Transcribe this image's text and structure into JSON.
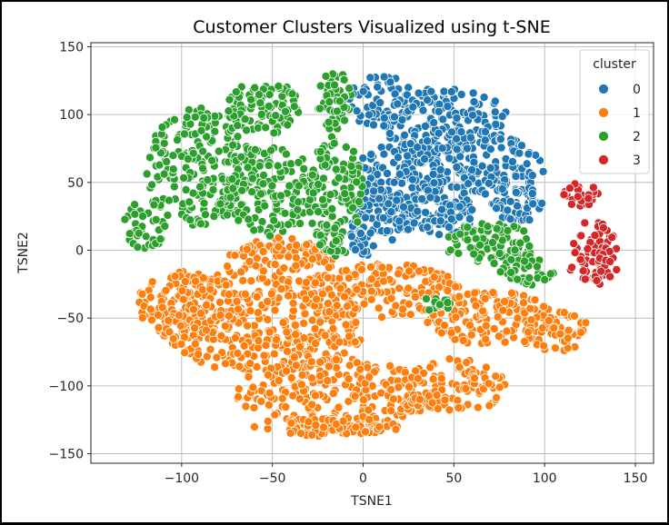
{
  "chart_data": {
    "type": "scatter",
    "title": "Customer Clusters Visualized using t-SNE",
    "xlabel": "TSNE1",
    "ylabel": "TSNE2",
    "xlim": [
      -150,
      160
    ],
    "ylim": [
      -157,
      153
    ],
    "xticks": [
      -100,
      -50,
      0,
      50,
      100,
      150
    ],
    "yticks": [
      -150,
      -100,
      -50,
      0,
      50,
      100,
      150
    ],
    "grid": true,
    "legend": {
      "title": "cluster",
      "placement": "top-right"
    },
    "series": [
      {
        "name": "0",
        "color": "#1f77b4",
        "regions": [
          {
            "center": [
              10,
              110
            ],
            "radius": [
              18,
              20
            ],
            "n": 60
          },
          {
            "center": [
              45,
              95
            ],
            "radius": [
              35,
              25
            ],
            "n": 160
          },
          {
            "center": [
              60,
              60
            ],
            "radius": [
              40,
              30
            ],
            "n": 190
          },
          {
            "center": [
              20,
              55
            ],
            "radius": [
              25,
              25
            ],
            "n": 110
          },
          {
            "center": [
              10,
              25
            ],
            "radius": [
              18,
              20
            ],
            "n": 80
          },
          {
            "center": [
              40,
              25
            ],
            "radius": [
              22,
              14
            ],
            "n": 80
          },
          {
            "center": [
              85,
              35
            ],
            "radius": [
              15,
              15
            ],
            "n": 50
          },
          {
            "center": [
              0,
              5
            ],
            "radius": [
              10,
              10
            ],
            "n": 25
          }
        ]
      },
      {
        "name": "1",
        "color": "#ff7f0e",
        "regions": [
          {
            "center": [
              -95,
              -40
            ],
            "radius": [
              30,
              25
            ],
            "n": 170
          },
          {
            "center": [
              -45,
              -10
            ],
            "radius": [
              30,
              20
            ],
            "n": 120
          },
          {
            "center": [
              -55,
              -60
            ],
            "radius": [
              55,
              30
            ],
            "n": 300
          },
          {
            "center": [
              10,
              -30
            ],
            "radius": [
              45,
              20
            ],
            "n": 180
          },
          {
            "center": [
              70,
              -50
            ],
            "radius": [
              35,
              20
            ],
            "n": 140
          },
          {
            "center": [
              -15,
              -105
            ],
            "radius": [
              55,
              25
            ],
            "n": 230
          },
          {
            "center": [
              50,
              -100
            ],
            "radius": [
              30,
              20
            ],
            "n": 100
          },
          {
            "center": [
              105,
              -60
            ],
            "radius": [
              20,
              15
            ],
            "n": 55
          },
          {
            "center": [
              -20,
              -130
            ],
            "radius": [
              40,
              7
            ],
            "n": 85
          }
        ]
      },
      {
        "name": "2",
        "color": "#2ca02c",
        "regions": [
          {
            "center": [
              -90,
              60
            ],
            "radius": [
              30,
              45
            ],
            "n": 210
          },
          {
            "center": [
              -55,
              105
            ],
            "radius": [
              20,
              20
            ],
            "n": 100
          },
          {
            "center": [
              -50,
              45
            ],
            "radius": [
              25,
              35
            ],
            "n": 150
          },
          {
            "center": [
              -120,
              20
            ],
            "radius": [
              12,
              20
            ],
            "n": 45
          },
          {
            "center": [
              -15,
              110
            ],
            "radius": [
              10,
              22
            ],
            "n": 50
          },
          {
            "center": [
              -15,
              40
            ],
            "radius": [
              15,
              45
            ],
            "n": 100
          },
          {
            "center": [
              -18,
              10
            ],
            "radius": [
              8,
              12
            ],
            "n": 25
          },
          {
            "center": [
              70,
              5
            ],
            "radius": [
              25,
              15
            ],
            "n": 80
          },
          {
            "center": [
              90,
              -15
            ],
            "radius": [
              15,
              12
            ],
            "n": 40
          },
          {
            "center": [
              40,
              -40
            ],
            "radius": [
              10,
              5
            ],
            "n": 15
          }
        ]
      },
      {
        "name": "3",
        "color": "#d62728",
        "regions": [
          {
            "center": [
              120,
              40
            ],
            "radius": [
              10,
              10
            ],
            "n": 25
          },
          {
            "center": [
              125,
              0
            ],
            "radius": [
              15,
              22
            ],
            "n": 55
          },
          {
            "center": [
              130,
              -15
            ],
            "radius": [
              10,
              12
            ],
            "n": 20
          }
        ]
      }
    ]
  }
}
